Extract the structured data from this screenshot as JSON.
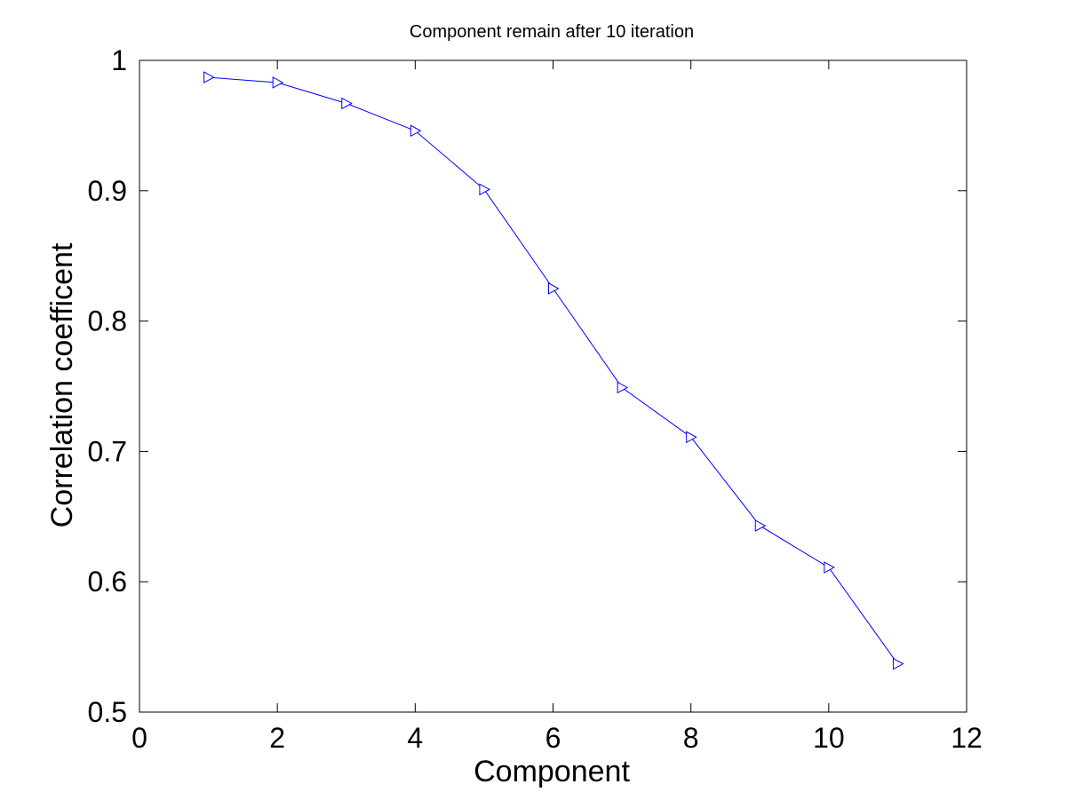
{
  "chart_data": {
    "type": "line",
    "title": "Component remain after 10 iteration",
    "xlabel": "Component",
    "ylabel": "Correlation coefficent",
    "xlim": [
      0,
      12
    ],
    "ylim": [
      0.5,
      1
    ],
    "xticks": [
      0,
      2,
      4,
      6,
      8,
      10,
      12
    ],
    "xtick_labels": [
      "0",
      "2",
      "4",
      "6",
      "8",
      "10",
      "12"
    ],
    "yticks": [
      0.5,
      0.6,
      0.7,
      0.8,
      0.9,
      1
    ],
    "ytick_labels": [
      "0.5",
      "0.6",
      "0.7",
      "0.8",
      "0.9",
      "1"
    ],
    "grid": false,
    "line_color": "#0000ff",
    "marker": "triangle-right",
    "series": [
      {
        "x": [
          1,
          2,
          3,
          4,
          5,
          6,
          7,
          8,
          9,
          10,
          11
        ],
        "values": [
          0.987,
          0.983,
          0.967,
          0.946,
          0.901,
          0.825,
          0.749,
          0.711,
          0.643,
          0.611,
          0.537
        ]
      }
    ]
  }
}
